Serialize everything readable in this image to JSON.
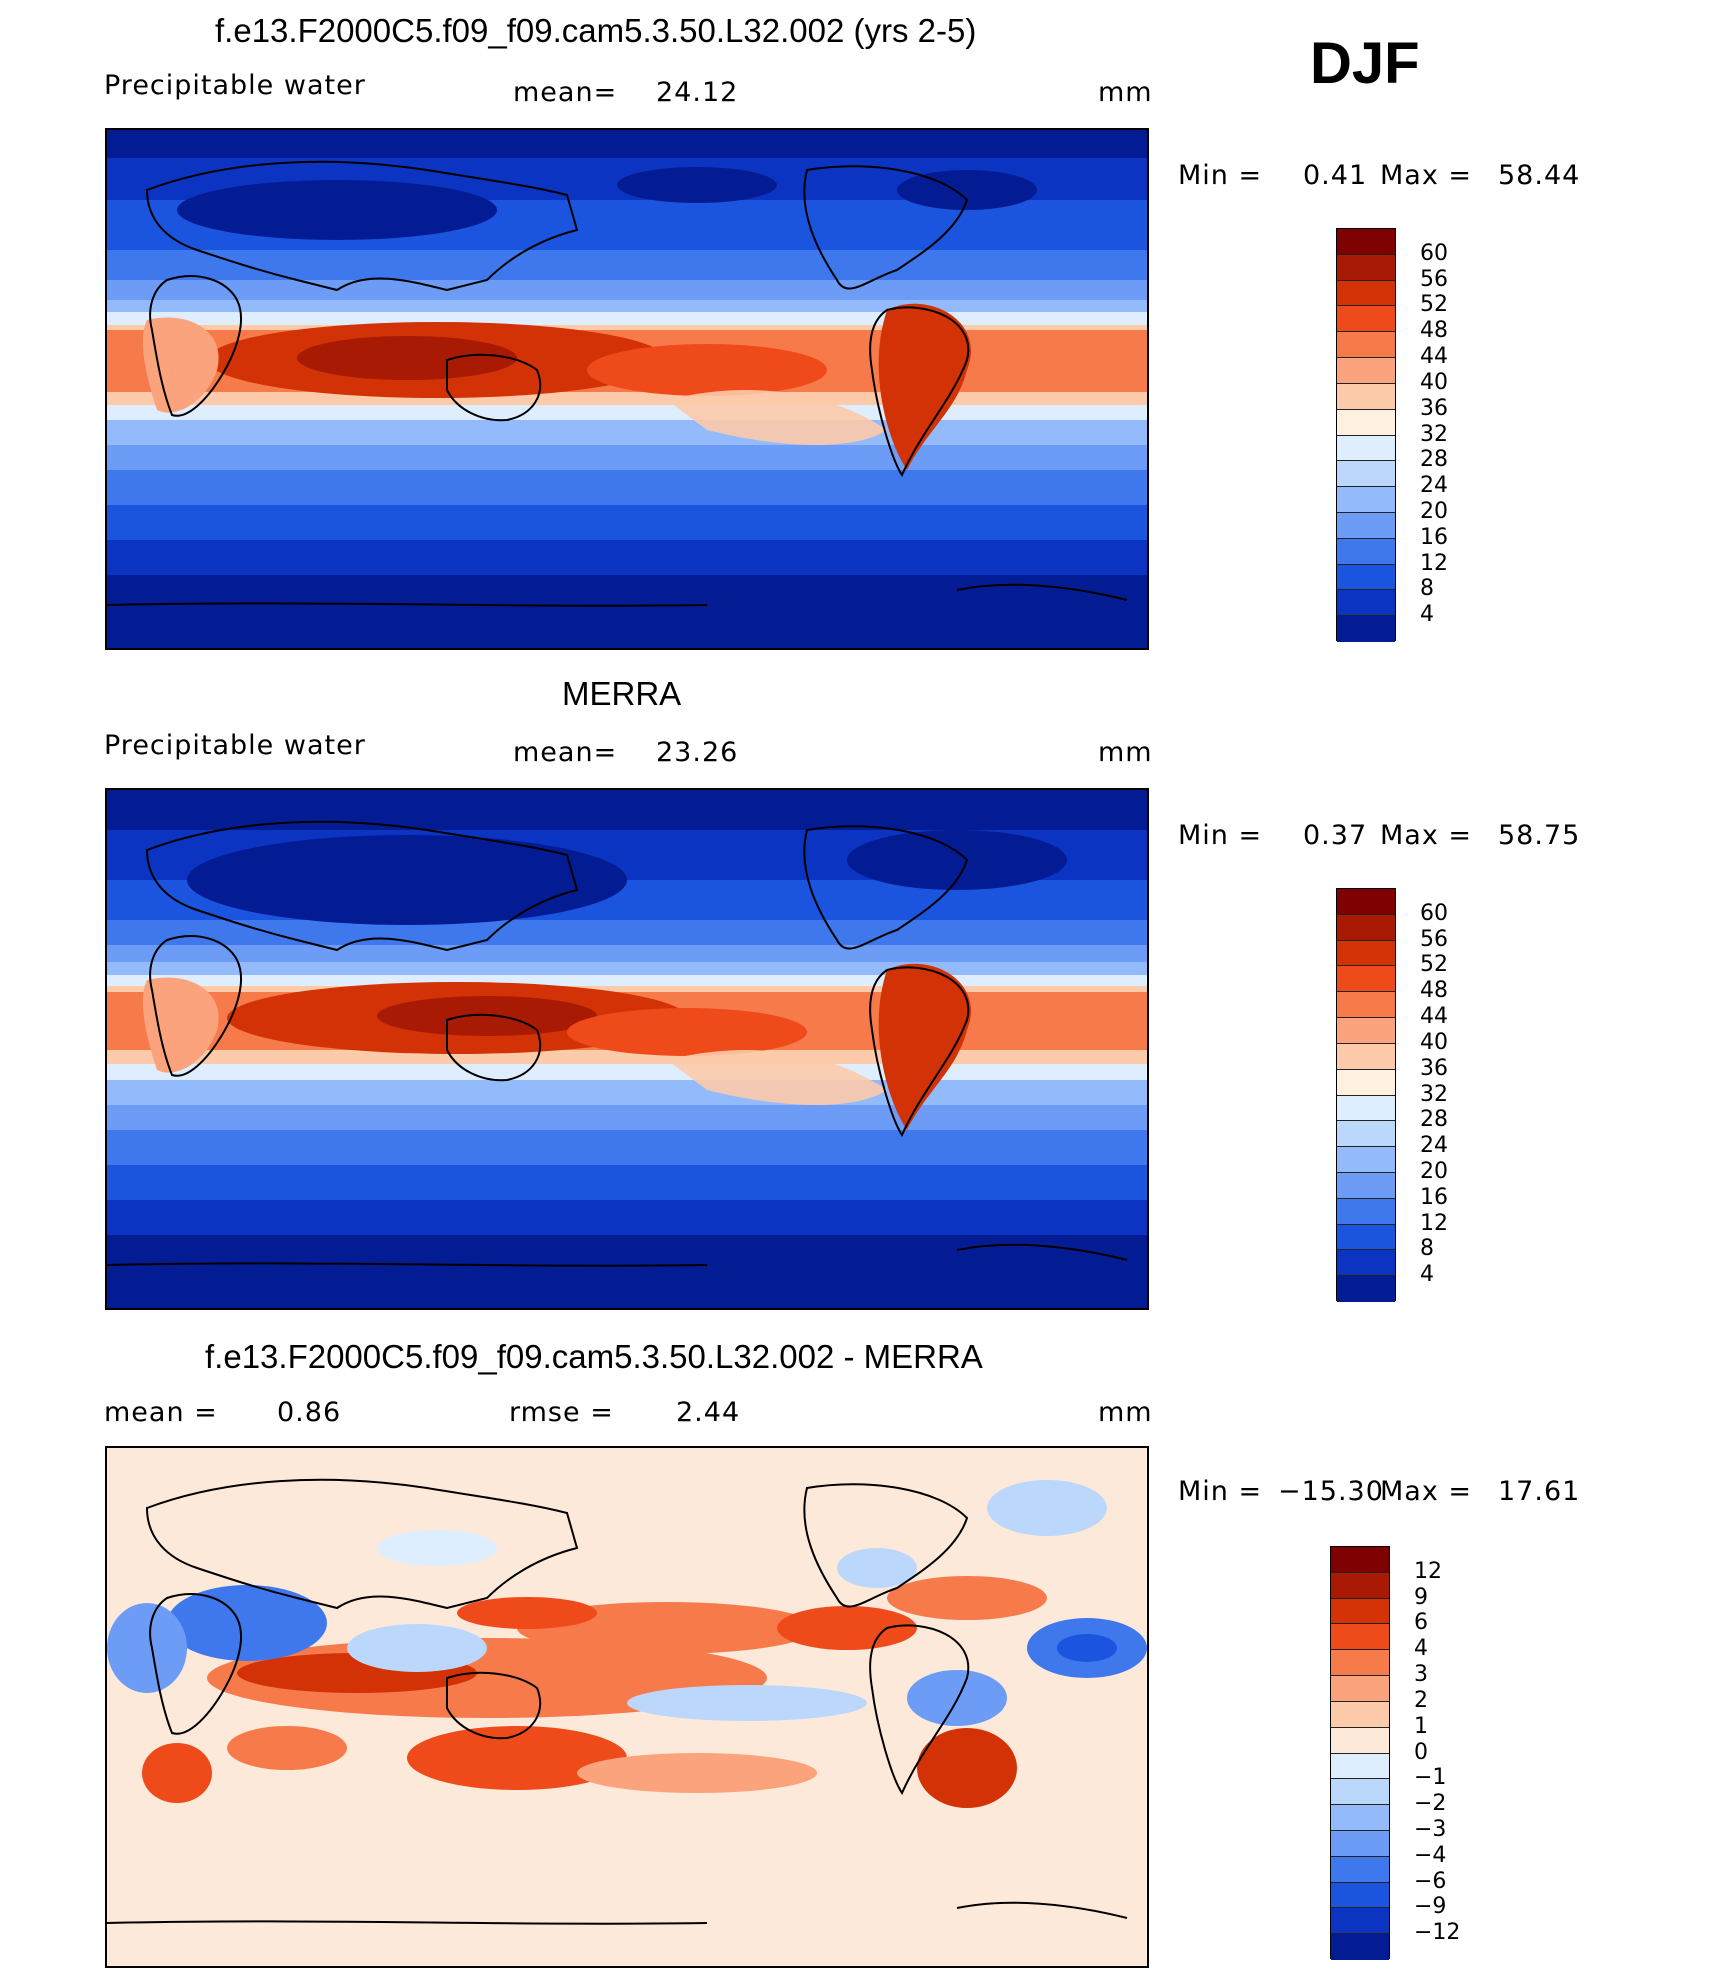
{
  "season": "DJF",
  "panels": [
    {
      "title": "f.e13.F2000C5.f09_f09.cam5.3.50.L32.002 (yrs 2-5)",
      "left_label": "Precipitable  water",
      "mid_label": "mean=",
      "mid_value": "24.12",
      "units": "mm",
      "min_label": "Min  =",
      "min_value": "0.41",
      "max_label": "Max  =",
      "max_value": "58.44",
      "colorbar": {
        "colors": [
          "#7f0000",
          "#a81a04",
          "#d23206",
          "#ef4a1a",
          "#f77a4a",
          "#fba37c",
          "#fdcaaa",
          "#fff0e0",
          "#dfeeff",
          "#bcd7fc",
          "#93bbfb",
          "#6c9cf6",
          "#3f78ec",
          "#1b54de",
          "#0a34c1",
          "#031c94"
        ],
        "labels": [
          "60",
          "56",
          "52",
          "48",
          "44",
          "40",
          "36",
          "32",
          "28",
          "24",
          "20",
          "16",
          "12",
          "8",
          "4"
        ]
      }
    },
    {
      "title": "MERRA",
      "left_label": "Precipitable  water",
      "mid_label": "mean=",
      "mid_value": "23.26",
      "units": "mm",
      "min_label": "Min  =",
      "min_value": "0.37",
      "max_label": "Max  =",
      "max_value": "58.75",
      "colorbar": {
        "colors": [
          "#7f0000",
          "#a81a04",
          "#d23206",
          "#ef4a1a",
          "#f77a4a",
          "#fba37c",
          "#fdcaaa",
          "#fff0e0",
          "#dfeeff",
          "#bcd7fc",
          "#93bbfb",
          "#6c9cf6",
          "#3f78ec",
          "#1b54de",
          "#0a34c1",
          "#031c94"
        ],
        "labels": [
          "60",
          "56",
          "52",
          "48",
          "44",
          "40",
          "36",
          "32",
          "28",
          "24",
          "20",
          "16",
          "12",
          "8",
          "4"
        ]
      }
    },
    {
      "title": "f.e13.F2000C5.f09_f09.cam5.3.50.L32.002 - MERRA",
      "left_label": "mean  =",
      "left_value": "0.86",
      "mid_label": "rmse  =",
      "mid_value": "2.44",
      "units": "mm",
      "min_label": "Min  =",
      "min_value": "−15.30",
      "max_label": "Max  =",
      "max_value": "17.61",
      "colorbar": {
        "colors": [
          "#7f0000",
          "#a81a04",
          "#d23206",
          "#ef4a1a",
          "#f77a4a",
          "#fba37c",
          "#fdcaaa",
          "#fde9d9",
          "#dfeeff",
          "#bcd7fc",
          "#93bbfb",
          "#6c9cf6",
          "#3f78ec",
          "#1b54de",
          "#0a34c1",
          "#031c94"
        ],
        "labels": [
          "12",
          "9",
          "6",
          "4",
          "3",
          "2",
          "1",
          "0",
          "−1",
          "−2",
          "−3",
          "−4",
          "−6",
          "−9",
          "−12"
        ]
      }
    }
  ]
}
